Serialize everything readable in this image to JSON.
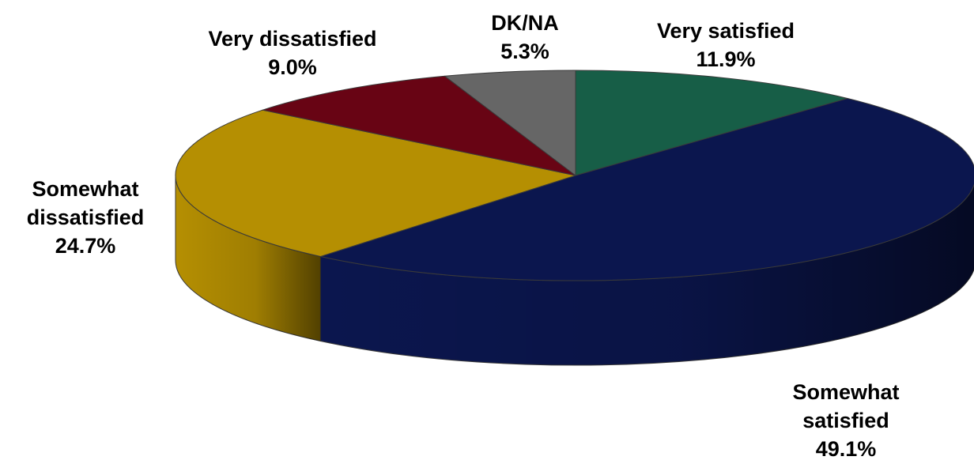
{
  "chart_data": {
    "type": "pie",
    "style": "3d-tilted",
    "title": "",
    "legend": "none",
    "slices": [
      {
        "name_lines": [
          "Very satisfied"
        ],
        "value_text": "11.9%",
        "value": 11.9,
        "color": "#175E47"
      },
      {
        "name_lines": [
          "Somewhat",
          "satisfied"
        ],
        "value_text": "49.1%",
        "value": 49.1,
        "color": "#0B164E"
      },
      {
        "name_lines": [
          "Somewhat",
          "dissatisfied"
        ],
        "value_text": "24.7%",
        "value": 24.7,
        "color": "#B58F02"
      },
      {
        "name_lines": [
          "Very dissatisfied"
        ],
        "value_text": "9.0%",
        "value": 9.0,
        "color": "#680414"
      },
      {
        "name_lines": [
          "DK/NA"
        ],
        "value_text": "5.3%",
        "value": 5.3,
        "color": "#666666"
      }
    ]
  }
}
